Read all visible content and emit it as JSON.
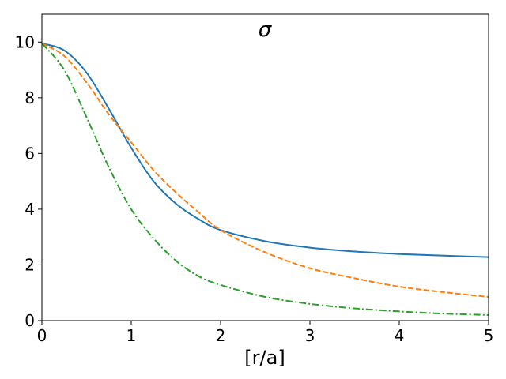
{
  "chart_data": {
    "type": "line",
    "title": "σ",
    "xlabel": "[r/a]",
    "ylabel": "",
    "xlim": [
      0,
      5
    ],
    "ylim": [
      0,
      11
    ],
    "xticks": [
      0,
      1,
      2,
      3,
      4,
      5
    ],
    "yticks": [
      0,
      2,
      4,
      6,
      8,
      10
    ],
    "grid": false,
    "legend": "none",
    "x": [
      0,
      0.25,
      0.5,
      0.75,
      1.0,
      1.25,
      1.5,
      1.75,
      2.0,
      2.5,
      3.0,
      3.5,
      4.0,
      4.5,
      5.0
    ],
    "series": [
      {
        "color": "#1f77b4",
        "style": "solid",
        "values": [
          9.95,
          9.7,
          8.9,
          7.6,
          6.2,
          5.0,
          4.2,
          3.65,
          3.25,
          2.85,
          2.62,
          2.48,
          2.39,
          2.33,
          2.28
        ]
      },
      {
        "color": "#ff7f0e",
        "style": "dashed",
        "values": [
          9.95,
          9.5,
          8.55,
          7.4,
          6.4,
          5.4,
          4.6,
          3.9,
          3.25,
          2.45,
          1.88,
          1.52,
          1.22,
          1.02,
          0.85
        ]
      },
      {
        "color": "#2ca02c",
        "style": "dashdot",
        "values": [
          9.95,
          9.0,
          7.3,
          5.5,
          4.0,
          2.95,
          2.15,
          1.6,
          1.28,
          0.85,
          0.6,
          0.44,
          0.33,
          0.25,
          0.2
        ]
      }
    ]
  }
}
